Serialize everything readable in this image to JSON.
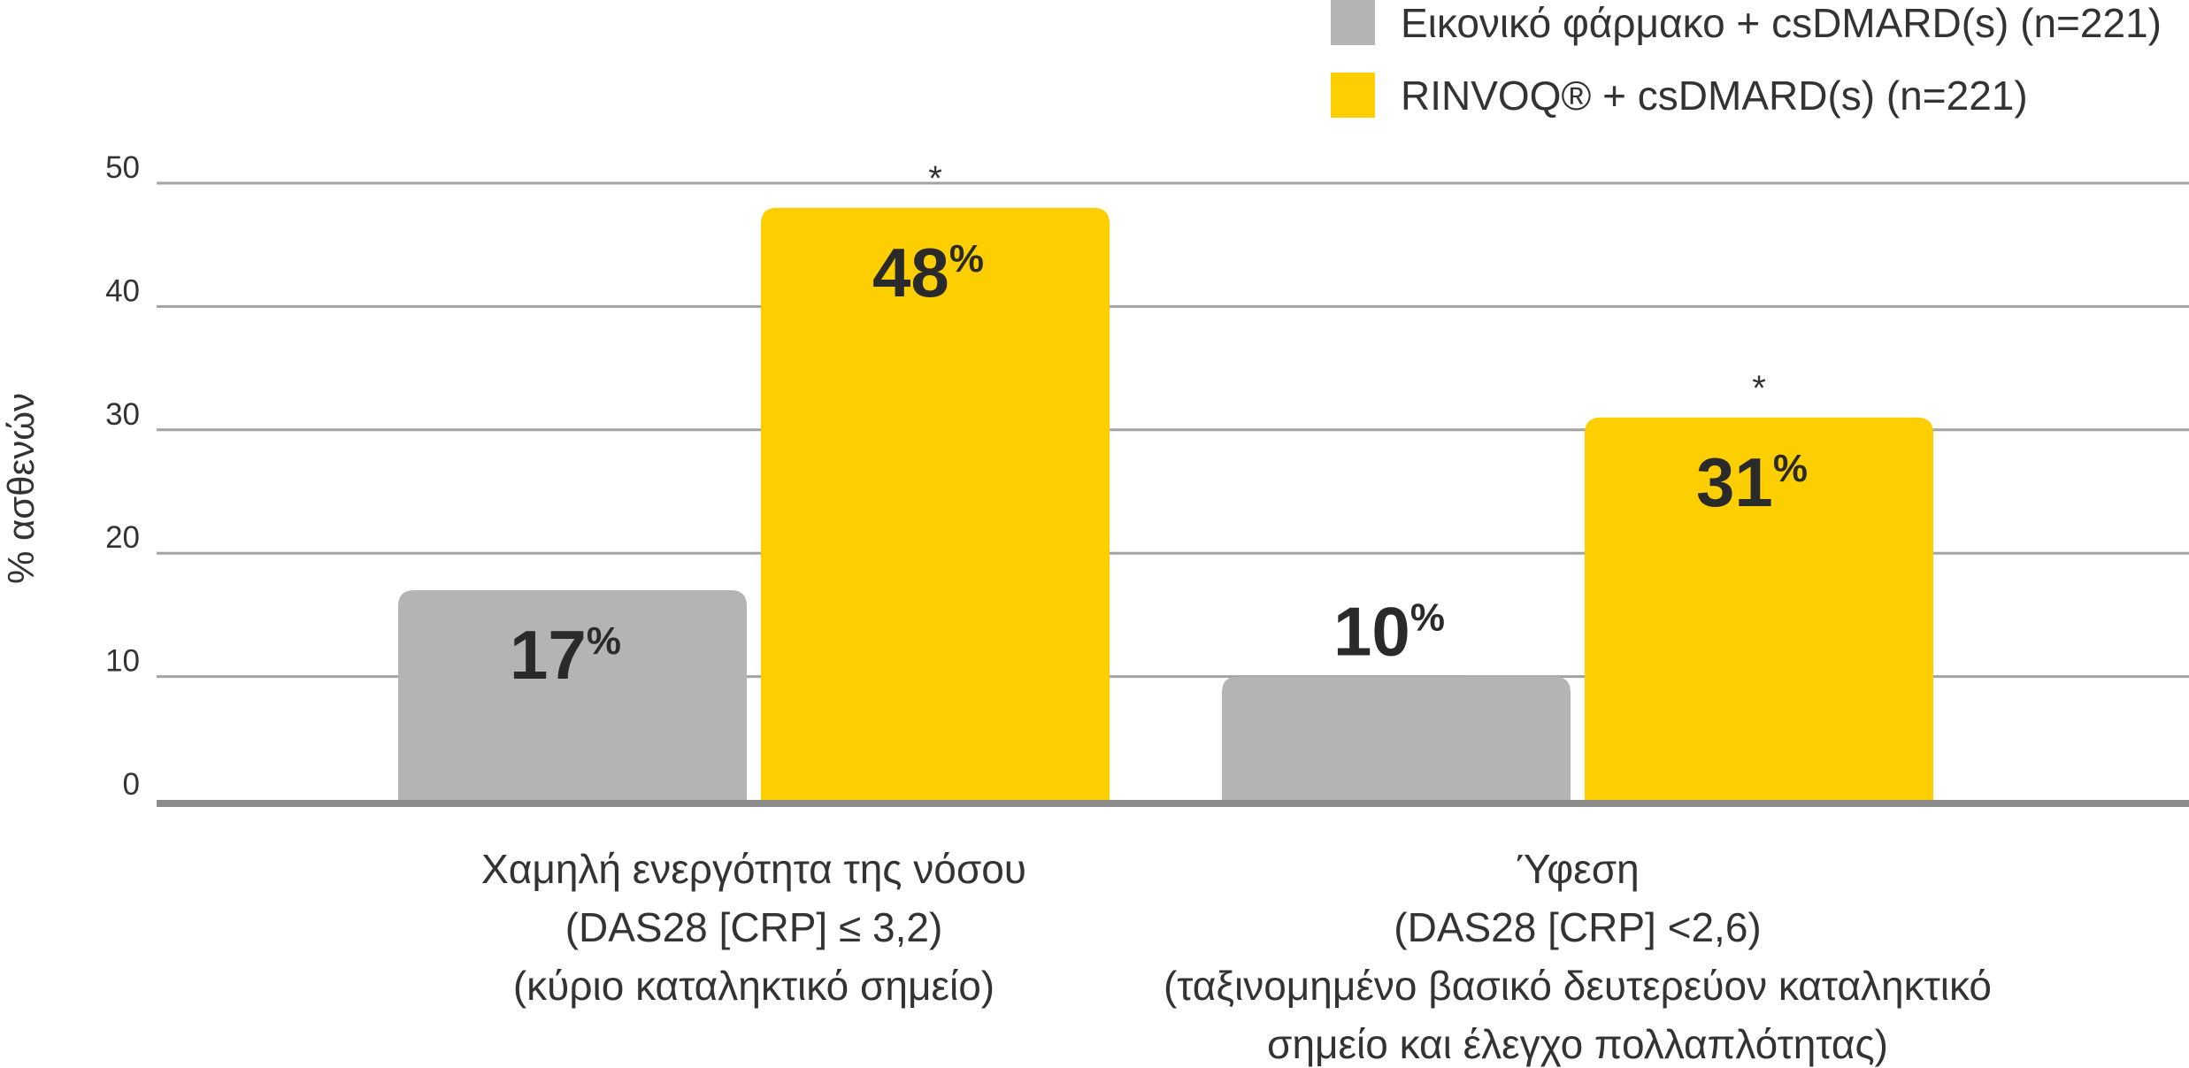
{
  "chart_data": {
    "type": "bar",
    "title": "",
    "xlabel": "",
    "ylabel": "% ασθενών",
    "ylim": [
      0,
      50
    ],
    "yticks": [
      0,
      10,
      20,
      30,
      40,
      50
    ],
    "grid": true,
    "legend_position": "top-right",
    "categories": [
      [
        "Χαμηλή ενεργότητα της νόσου",
        "(DAS28 [CRP] ≤ 3,2)",
        "(κύριο καταληκτικό σημείο)"
      ],
      [
        "Ύφεση",
        "(DAS28 [CRP] <2,6)",
        "(ταξινομημένο βασικό δευτερεύον καταληκτικό",
        "σημείο και έλεγχο πολλαπλότητας)"
      ]
    ],
    "series": [
      {
        "name": "Εικονικό φάρμακο + csDMARD(s) (n=221)",
        "color": "#b3b4b3",
        "values": [
          17,
          10
        ],
        "labels": [
          "17",
          "10"
        ],
        "significance": [
          "",
          ""
        ]
      },
      {
        "name": "RINVOQ® + csDMARD(s) (n=221)",
        "color": "#fdcf00",
        "values": [
          48,
          31
        ],
        "labels": [
          "48",
          "31"
        ],
        "significance": [
          "*",
          "*"
        ]
      }
    ],
    "value_suffix": "%"
  }
}
